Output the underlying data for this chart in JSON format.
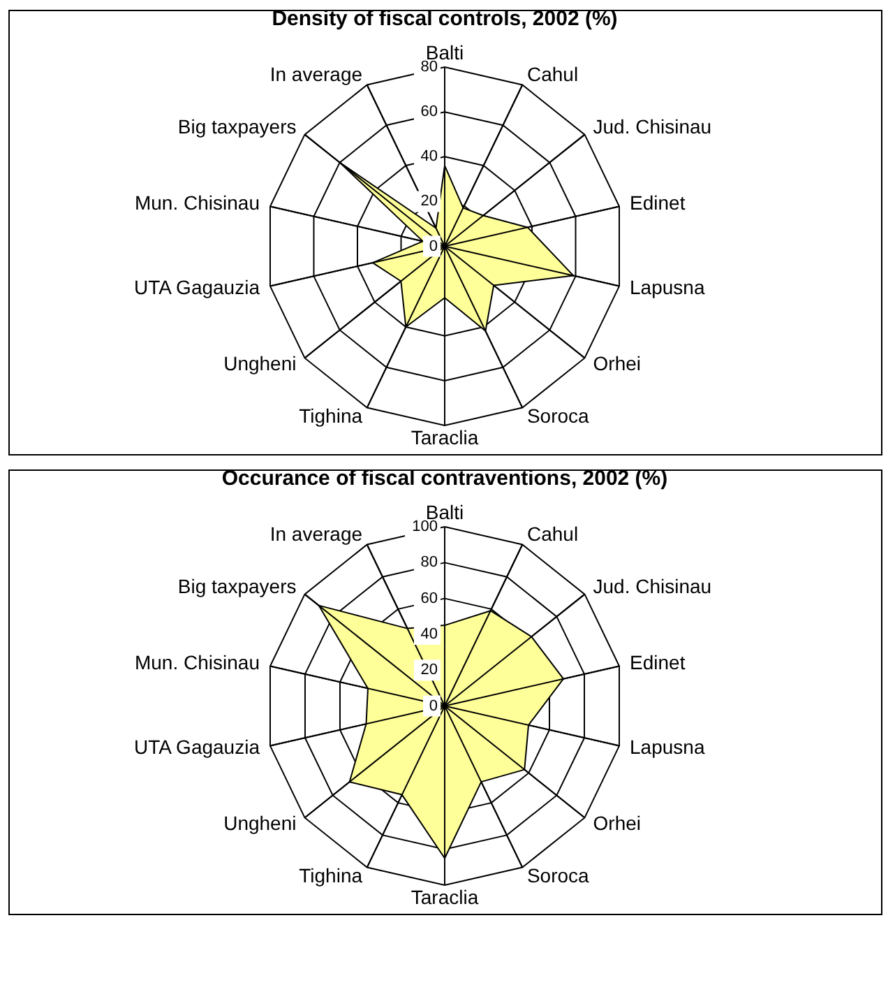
{
  "chart_data": [
    {
      "type": "radar",
      "title": "Density of fiscal controls, 2002 (%)",
      "categories": [
        "Balti",
        "Cahul",
        "Jud. Chisinau",
        "Edinet",
        "Lapusna",
        "Orhei",
        "Soroca",
        "Taraclia",
        "Tighina",
        "Ungheni",
        "UTA Gagauzia",
        "Mun. Chisinau",
        "Big taxpayers",
        "In average"
      ],
      "series": [
        {
          "color": "#ffff99",
          "values": [
            36,
            19,
            22,
            38,
            59,
            28,
            42,
            23,
            40,
            25,
            33,
            10,
            60,
            9
          ]
        }
      ],
      "ylim": [
        0,
        80
      ],
      "yticks": [
        0,
        20,
        40,
        60,
        80
      ],
      "grid": true
    },
    {
      "type": "radar",
      "title": "Occurance of fiscal contraventions, 2002 (%)",
      "categories": [
        "Balti",
        "Cahul",
        "Jud. Chisinau",
        "Edinet",
        "Lapusna",
        "Orhei",
        "Soroca",
        "Taraclia",
        "Tighina",
        "Ungheni",
        "UTA Gagauzia",
        "Mun. Chisinau",
        "Big taxpayers",
        "In average"
      ],
      "series": [
        {
          "color": "#ffff99",
          "values": [
            45,
            59,
            62,
            68,
            48,
            57,
            47,
            85,
            55,
            68,
            45,
            44,
            90,
            48
          ]
        }
      ],
      "ylim": [
        0,
        100
      ],
      "yticks": [
        0,
        20,
        40,
        60,
        80,
        100
      ],
      "grid": true
    }
  ]
}
